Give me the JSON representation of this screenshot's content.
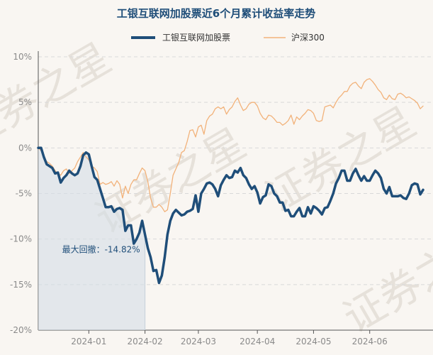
{
  "chart_data": {
    "type": "line",
    "title": "工银互联网加股票近6个月累计收益率走势",
    "legend_position": "top",
    "y_range": [
      -20,
      10
    ],
    "y_ticks": [
      10,
      5,
      0,
      -5,
      -10,
      -15,
      -20
    ],
    "y_tick_labels": [
      "10%",
      "5%",
      "0%",
      "-5%",
      "-10%",
      "-15%",
      "-20%"
    ],
    "x_tick_labels": [
      "2024-01",
      "2024-02",
      "2024-03",
      "2024-04",
      "2024-05",
      "2024-06"
    ],
    "x_tick_index": [
      18,
      38,
      57,
      78,
      98,
      118
    ],
    "grid": true,
    "watermark_text": "证券之星",
    "drawdown_label": "最大回撤：-14.82%",
    "drawdown_end_index": 38,
    "series": [
      {
        "name": "工银互联网加股票",
        "color": "#1f4e79",
        "values": [
          0,
          0,
          -1,
          -1.8,
          -2,
          -2.2,
          -2.8,
          -2.7,
          -3.8,
          -3.3,
          -3,
          -2.5,
          -2.8,
          -3,
          -2.8,
          -2,
          -0.8,
          -0.5,
          -0.7,
          -2,
          -3.2,
          -3.5,
          -4.5,
          -5.5,
          -6.5,
          -6.5,
          -6.4,
          -7,
          -6.7,
          -6.6,
          -6.8,
          -9.1,
          -8.5,
          -8.5,
          -10.5,
          -10,
          -9.3,
          -8,
          -9.5,
          -11,
          -12,
          -13.5,
          -13.4,
          -14.82,
          -14,
          -12,
          -9.5,
          -8,
          -7.2,
          -6.8,
          -7.1,
          -7.4,
          -7.3,
          -7,
          -6.9,
          -6.7,
          -5.2,
          -7,
          -5,
          -4.5,
          -3.9,
          -3.8,
          -4,
          -4.5,
          -5.3,
          -4.1,
          -3.5,
          -3,
          -3.3,
          -3.2,
          -2.5,
          -2.7,
          -2.2,
          -3,
          -3.3,
          -4,
          -4.5,
          -4.2,
          -4.9,
          -6.1,
          -5.4,
          -5.2,
          -4,
          -4.2,
          -5,
          -5.3,
          -6,
          -6,
          -6.9,
          -6.8,
          -7.5,
          -7.5,
          -7,
          -6.6,
          -7.5,
          -7.5,
          -6.5,
          -7.2,
          -6.4,
          -6.6,
          -6.9,
          -7.3,
          -6.6,
          -6.5,
          -5.8,
          -5,
          -3.9,
          -3.3,
          -2.5,
          -2.5,
          -3.6,
          -3.6,
          -2.8,
          -2.3,
          -3,
          -3.6,
          -3.1,
          -3.6,
          -3.6,
          -3,
          -2.5,
          -2.8,
          -3.3,
          -4.5,
          -5,
          -4.3,
          -5.3,
          -5.3,
          -5.3,
          -5.2,
          -5.5,
          -5.6,
          -5,
          -4.1,
          -3.9,
          -4,
          -5.1,
          -4.6
        ]
      },
      {
        "name": "沪深300",
        "color": "#f2b27a",
        "values": [
          0,
          -0.3,
          -1,
          -1.5,
          -1.7,
          -2,
          -2.5,
          -2.8,
          -3,
          -2.5,
          -2.3,
          -2.8,
          -2.5,
          -2.2,
          -1.5,
          -1,
          -0.5,
          -1,
          -1.3,
          -2,
          -2.2,
          -2.6,
          -4,
          -3.8,
          -4,
          -3.9,
          -3.7,
          -4.2,
          -3.6,
          -4,
          -5.5,
          -4.2,
          -5,
          -4,
          -3.5,
          -3.5,
          -2.8,
          -2.2,
          -2.5,
          -3.7,
          -5.5,
          -6.5,
          -6.5,
          -6.2,
          -6.5,
          -7,
          -6.8,
          -5,
          -3,
          -2.3,
          -1.6,
          -0.5,
          -0.3,
          0.7,
          1.9,
          2,
          1.2,
          2.3,
          2.5,
          1.5,
          3,
          3.5,
          3.7,
          4.3,
          4.5,
          4.3,
          4.5,
          3.7,
          4.2,
          4.5,
          5.1,
          5.5,
          4.7,
          4.1,
          4.3,
          4.8,
          5,
          5,
          4.6,
          3.8,
          3.3,
          3.1,
          3.6,
          3.5,
          3.2,
          2.8,
          2.8,
          2.5,
          2.7,
          3,
          3.6,
          2.6,
          3.4,
          3.1,
          3.5,
          3.8,
          4.2,
          4.1,
          3.8,
          3,
          2.9,
          3,
          4.5,
          4.6,
          4.7,
          4.4,
          5,
          5.5,
          5.8,
          6.2,
          6.2,
          6.8,
          7.1,
          7.2,
          6.8,
          6.5,
          7.2,
          7.5,
          7.6,
          7.3,
          6.9,
          6.4,
          6.1,
          5.5,
          5.3,
          5.8,
          5.4,
          5.3,
          5.9,
          6,
          5.8,
          5.5,
          5.6,
          5.4,
          5.2,
          4.9,
          4.3,
          4.6
        ]
      }
    ]
  }
}
